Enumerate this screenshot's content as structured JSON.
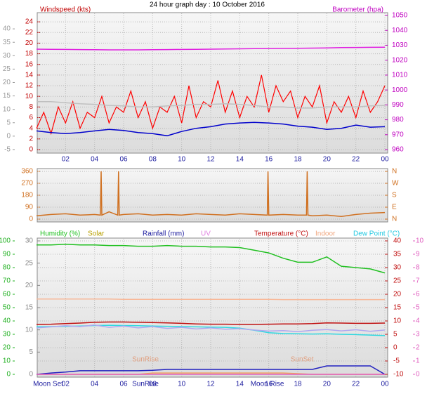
{
  "chart_data": [
    {
      "type": "line",
      "title": "24 hour graph day : 10 October 2016",
      "x": [
        0,
        1,
        2,
        3,
        4,
        5,
        6,
        7,
        8,
        9,
        10,
        11,
        12,
        13,
        14,
        15,
        16,
        17,
        18,
        19,
        20,
        21,
        22,
        23,
        24
      ],
      "xlim": [
        0,
        24
      ],
      "xticks": [
        {
          "value": 2,
          "label": "02"
        },
        {
          "value": 4,
          "label": "04"
        },
        {
          "value": 6,
          "label": "06"
        },
        {
          "value": 8,
          "label": "08"
        },
        10,
        12,
        14,
        16,
        18,
        20,
        22,
        {
          "value": 24,
          "label": "00"
        }
      ],
      "ylim": [
        -0.4,
        25.2
      ],
      "yticks": [
        0,
        2,
        4,
        6,
        8,
        10,
        12,
        14,
        16,
        18,
        20,
        22,
        24
      ],
      "y3lim": [
        -5.8,
        45
      ],
      "y3ticks": [
        -5,
        0,
        5,
        10,
        15,
        20,
        25,
        30,
        35,
        40
      ],
      "y2lim": [
        958.6,
        1050
      ],
      "y2ticks": [
        960,
        970,
        980,
        990,
        1000,
        1010,
        1020,
        1030,
        1040,
        1050
      ],
      "grid": true,
      "series": [
        {
          "name": "Windspeed (kts)",
          "color": "#ff0000",
          "x": [
            0,
            0.5,
            1,
            1.5,
            2,
            2.5,
            3,
            3.5,
            4,
            4.5,
            5,
            5.5,
            6,
            6.5,
            7,
            7.5,
            8,
            8.5,
            9,
            9.5,
            10,
            10.5,
            11,
            11.5,
            12,
            12.5,
            13,
            13.5,
            14,
            14.5,
            15,
            15.5,
            16,
            16.5,
            17,
            17.5,
            18,
            18.5,
            19,
            19.5,
            20,
            20.5,
            21,
            21.5,
            22,
            22.5,
            23,
            23.5,
            24
          ],
          "values": [
            4,
            7,
            3,
            8,
            5,
            9,
            4,
            7,
            6,
            10,
            5,
            8,
            7,
            11,
            6,
            9,
            4,
            8,
            7,
            10,
            5,
            12,
            6,
            9,
            8,
            13,
            7,
            11,
            6,
            10,
            8,
            14,
            7,
            12,
            9,
            11,
            6,
            10,
            8,
            12,
            5,
            9,
            7,
            10,
            6,
            11,
            7,
            9,
            12
          ]
        },
        {
          "color": "#c0c0c0",
          "values": [
            9,
            9,
            8.8,
            8.6,
            8.5,
            8.3,
            8.2,
            8,
            8,
            8.2,
            8.3,
            8.5,
            8.5,
            8.6,
            8.5,
            8.3,
            8,
            8,
            7.8,
            7.8,
            8,
            8,
            8,
            8.2,
            8.3
          ]
        },
        {
          "color": "#0000cc",
          "values": [
            3.5,
            3.2,
            3.0,
            3.2,
            3.5,
            3.8,
            3.6,
            3.2,
            3.0,
            2.6,
            3.4,
            4,
            4.3,
            4.8,
            5,
            5.1,
            5,
            4.8,
            4.4,
            4.2,
            3.8,
            4,
            4.6,
            4.2,
            4.3
          ]
        },
        {
          "name": "Barometer (hpa)",
          "color": "#e020e0",
          "axis": "y2",
          "values": [
            1027.4,
            1027.3,
            1027.2,
            1027.1,
            1027,
            1026.9,
            1026.9,
            1026.9,
            1027,
            1027.1,
            1027.2,
            1027.3,
            1027.4,
            1027.5,
            1027.6,
            1027.7,
            1027.8,
            1027.9,
            1028,
            1028.1,
            1028.2,
            1028.4,
            1028.5,
            1028.6,
            1028.7
          ]
        }
      ]
    },
    {
      "type": "line",
      "x": [
        0,
        1,
        2,
        3,
        4,
        4.4,
        4.45,
        4.5,
        5,
        5.6,
        5.65,
        5.7,
        6,
        7,
        8,
        9,
        10,
        11,
        12,
        13,
        14,
        15,
        15.9,
        15.95,
        16,
        17,
        18,
        18.6,
        18.65,
        18.7,
        19,
        20,
        21,
        22,
        23,
        24
      ],
      "xlim": [
        0,
        24
      ],
      "ylim": [
        0,
        360
      ],
      "yticks": [
        0,
        90,
        180,
        270,
        360
      ],
      "y2lim": [
        0,
        360
      ],
      "y2ticks": [
        {
          "value": 360,
          "label": "N"
        },
        {
          "value": 270,
          "label": "W"
        },
        {
          "value": 180,
          "label": "S"
        },
        {
          "value": 90,
          "label": "E"
        },
        {
          "value": 0,
          "label": "N"
        }
      ],
      "grid": true,
      "series": [
        {
          "color": "#d07020",
          "values": [
            25,
            35,
            40,
            30,
            35,
            30,
            360,
            30,
            55,
            30,
            360,
            30,
            35,
            40,
            30,
            35,
            30,
            40,
            35,
            30,
            40,
            35,
            30,
            360,
            30,
            35,
            30,
            30,
            360,
            30,
            25,
            30,
            20,
            35,
            45,
            50
          ]
        }
      ]
    },
    {
      "type": "line",
      "x": [
        0,
        1,
        2,
        3,
        4,
        5,
        6,
        7,
        8,
        9,
        10,
        11,
        12,
        13,
        14,
        15,
        16,
        17,
        18,
        19,
        20,
        21,
        22,
        23,
        24
      ],
      "xlim": [
        0,
        24
      ],
      "xticks": [
        {
          "value": 2,
          "label": "02"
        },
        {
          "value": 4,
          "label": "04"
        },
        {
          "value": 6,
          "label": "06"
        },
        {
          "value": 8,
          "label": "08"
        },
        10,
        12,
        14,
        16,
        18,
        20,
        22,
        {
          "value": 24,
          "label": "00"
        }
      ],
      "ylim": [
        0,
        100
      ],
      "yticks": [
        0,
        10,
        20,
        30,
        40,
        50,
        60,
        70,
        80,
        90,
        100
      ],
      "y3lim": [
        0,
        30
      ],
      "y3ticks": [
        0,
        5,
        10,
        15,
        20,
        25,
        30
      ],
      "y2lim": [
        -10,
        40
      ],
      "y2ticks": [
        -10,
        -5,
        0,
        5,
        10,
        15,
        20,
        25,
        30,
        35,
        40
      ],
      "y4lim": [
        0,
        10
      ],
      "y4ticks": [
        0,
        1,
        2,
        3,
        4,
        5,
        6,
        7,
        8,
        9,
        10
      ],
      "grid": true,
      "series": [
        {
          "name": "Humidity (%)",
          "color": "#20c020",
          "values": [
            97,
            97,
            97.5,
            97,
            97,
            96.5,
            96.5,
            96,
            96,
            96.5,
            96,
            96,
            95.5,
            95.5,
            95,
            93,
            91,
            87,
            84,
            84,
            88,
            81,
            80,
            79,
            76
          ]
        },
        {
          "name": "Solar",
          "color": "#f0a060",
          "values": [
            0,
            0,
            0,
            0,
            0,
            0,
            0,
            0,
            1,
            1,
            1,
            1,
            1,
            1,
            1,
            1,
            1,
            1,
            0.5,
            0,
            0,
            0,
            0,
            0,
            0
          ]
        },
        {
          "name": "Rainfall (mm)",
          "color": "#2020c0",
          "axis": "y3",
          "values": [
            0,
            0.3,
            0.5,
            0.8,
            0.8,
            0.8,
            0.8,
            0.8,
            0.9,
            1.1,
            1.1,
            1.1,
            1.1,
            1.1,
            1.1,
            1.1,
            1.1,
            1.1,
            1.1,
            1.1,
            1.9,
            1.9,
            1.9,
            1.9,
            0
          ]
        },
        {
          "name": "UV",
          "color": "#e060c0",
          "axis": "y4",
          "values": [
            0,
            0,
            0,
            0,
            0,
            0,
            0,
            0,
            0,
            0,
            0,
            0,
            0,
            0,
            0,
            0,
            0,
            0,
            0,
            0,
            0,
            0,
            0,
            0,
            0
          ]
        },
        {
          "name": "Temperature (°C)",
          "color": "#c01010",
          "axis": "y2",
          "values": [
            8.7,
            8.8,
            9,
            9.2,
            9.5,
            9.6,
            9.6,
            9.5,
            9.4,
            9.3,
            9.1,
            8.9,
            8.8,
            8.8,
            8.7,
            8.7,
            8.8,
            8.9,
            8.9,
            9,
            9.3,
            9.2,
            9.1,
            9.1,
            9.2
          ]
        },
        {
          "name": "Indoor",
          "color": "#f8b898",
          "axis": "y2",
          "values": [
            18.2,
            18.2,
            18.2,
            18.2,
            18.2,
            18.2,
            18.1,
            18.1,
            18.1,
            18.1,
            18.1,
            18.1,
            18.1,
            18.1,
            18.1,
            18.1,
            18.1,
            18,
            18,
            18,
            18,
            18,
            18,
            18,
            18
          ]
        },
        {
          "name": "Dew Point (°C)",
          "color": "#30d8e0",
          "axis": "y2",
          "values": [
            7.8,
            7.9,
            8,
            8.1,
            8.3,
            8.4,
            8.3,
            8.2,
            8.1,
            8,
            7.9,
            7.8,
            7.7,
            7.6,
            7.3,
            6.5,
            5.6,
            5.3,
            5.2,
            5.1,
            5.2,
            5,
            4.9,
            4.7,
            4.5
          ]
        },
        {
          "color": "#b0a8f0",
          "axis": "y2",
          "values": [
            7.4,
            7.8,
            8.2,
            7.9,
            8.5,
            7.6,
            8.1,
            7.4,
            7.9,
            7.2,
            7.6,
            7.0,
            7.4,
            6.9,
            7.1,
            6.6,
            6.2,
            6.4,
            6.0,
            6.5,
            6.8,
            6.3,
            6.7,
            6.1,
            6.6
          ]
        }
      ],
      "events": [
        {
          "text": "Moon Set",
          "x": 0.8
        },
        {
          "text": "SunRise",
          "x": 7.5
        },
        {
          "text": "Moon Rise",
          "x": 15.9
        }
      ],
      "sun": [
        {
          "text": "SunRise",
          "x": 7.5
        },
        {
          "text": "SunSet",
          "x": 18.3
        }
      ]
    }
  ]
}
